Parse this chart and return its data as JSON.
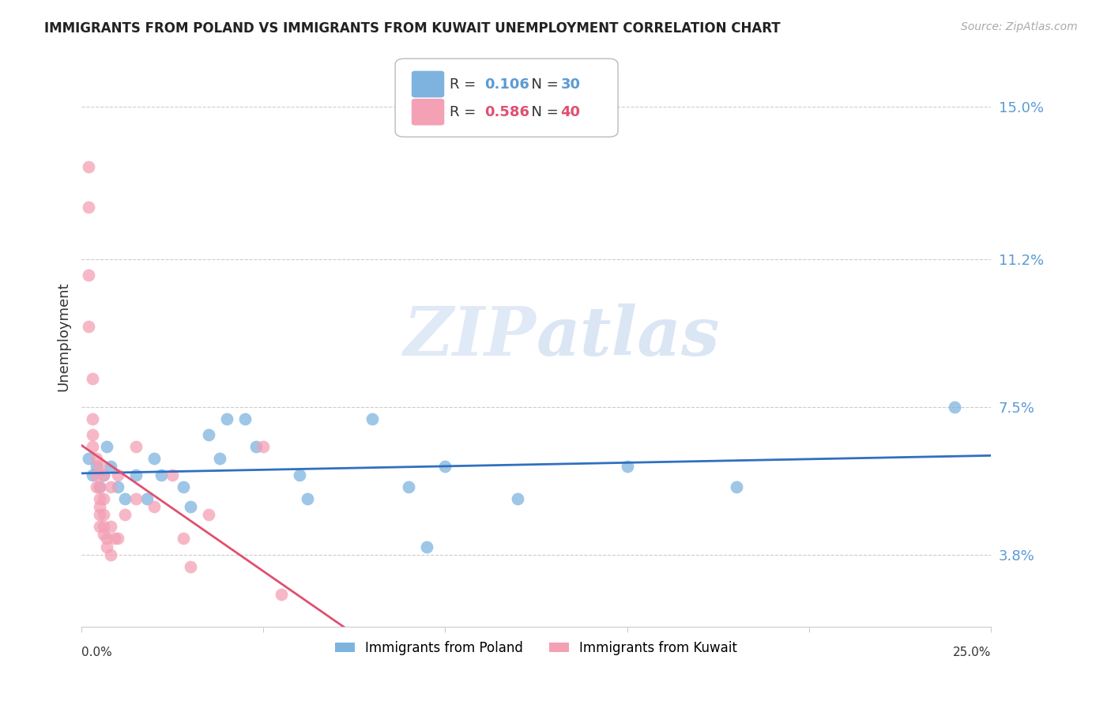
{
  "title": "IMMIGRANTS FROM POLAND VS IMMIGRANTS FROM KUWAIT UNEMPLOYMENT CORRELATION CHART",
  "source": "Source: ZipAtlas.com",
  "ylabel": "Unemployment",
  "ytick_labels": [
    "15.0%",
    "11.2%",
    "7.5%",
    "3.8%"
  ],
  "ytick_values": [
    0.15,
    0.112,
    0.075,
    0.038
  ],
  "xlim": [
    0.0,
    0.25
  ],
  "ylim": [
    0.02,
    0.165
  ],
  "poland_color": "#7eb3e0",
  "kuwait_color": "#f4a0b5",
  "trendline_poland_color": "#3070c0",
  "trendline_kuwait_color": "#e05070",
  "watermark_zip": "ZIP",
  "watermark_atlas": "atlas",
  "poland_scatter": [
    [
      0.002,
      0.062
    ],
    [
      0.003,
      0.058
    ],
    [
      0.004,
      0.06
    ],
    [
      0.005,
      0.055
    ],
    [
      0.006,
      0.058
    ],
    [
      0.007,
      0.065
    ],
    [
      0.008,
      0.06
    ],
    [
      0.01,
      0.055
    ],
    [
      0.012,
      0.052
    ],
    [
      0.015,
      0.058
    ],
    [
      0.018,
      0.052
    ],
    [
      0.02,
      0.062
    ],
    [
      0.022,
      0.058
    ],
    [
      0.028,
      0.055
    ],
    [
      0.03,
      0.05
    ],
    [
      0.035,
      0.068
    ],
    [
      0.038,
      0.062
    ],
    [
      0.04,
      0.072
    ],
    [
      0.045,
      0.072
    ],
    [
      0.048,
      0.065
    ],
    [
      0.06,
      0.058
    ],
    [
      0.062,
      0.052
    ],
    [
      0.08,
      0.072
    ],
    [
      0.09,
      0.055
    ],
    [
      0.095,
      0.04
    ],
    [
      0.1,
      0.06
    ],
    [
      0.12,
      0.052
    ],
    [
      0.15,
      0.06
    ],
    [
      0.18,
      0.055
    ],
    [
      0.24,
      0.075
    ]
  ],
  "kuwait_scatter": [
    [
      0.002,
      0.135
    ],
    [
      0.002,
      0.125
    ],
    [
      0.002,
      0.108
    ],
    [
      0.002,
      0.095
    ],
    [
      0.003,
      0.082
    ],
    [
      0.003,
      0.072
    ],
    [
      0.003,
      0.068
    ],
    [
      0.003,
      0.065
    ],
    [
      0.004,
      0.062
    ],
    [
      0.004,
      0.058
    ],
    [
      0.004,
      0.055
    ],
    [
      0.005,
      0.06
    ],
    [
      0.005,
      0.055
    ],
    [
      0.005,
      0.052
    ],
    [
      0.005,
      0.05
    ],
    [
      0.005,
      0.048
    ],
    [
      0.005,
      0.045
    ],
    [
      0.006,
      0.058
    ],
    [
      0.006,
      0.052
    ],
    [
      0.006,
      0.048
    ],
    [
      0.006,
      0.045
    ],
    [
      0.006,
      0.043
    ],
    [
      0.007,
      0.042
    ],
    [
      0.007,
      0.04
    ],
    [
      0.008,
      0.055
    ],
    [
      0.008,
      0.045
    ],
    [
      0.008,
      0.038
    ],
    [
      0.009,
      0.042
    ],
    [
      0.01,
      0.058
    ],
    [
      0.01,
      0.042
    ],
    [
      0.012,
      0.048
    ],
    [
      0.015,
      0.065
    ],
    [
      0.015,
      0.052
    ],
    [
      0.02,
      0.05
    ],
    [
      0.025,
      0.058
    ],
    [
      0.028,
      0.042
    ],
    [
      0.03,
      0.035
    ],
    [
      0.035,
      0.048
    ],
    [
      0.05,
      0.065
    ],
    [
      0.055,
      0.028
    ]
  ]
}
